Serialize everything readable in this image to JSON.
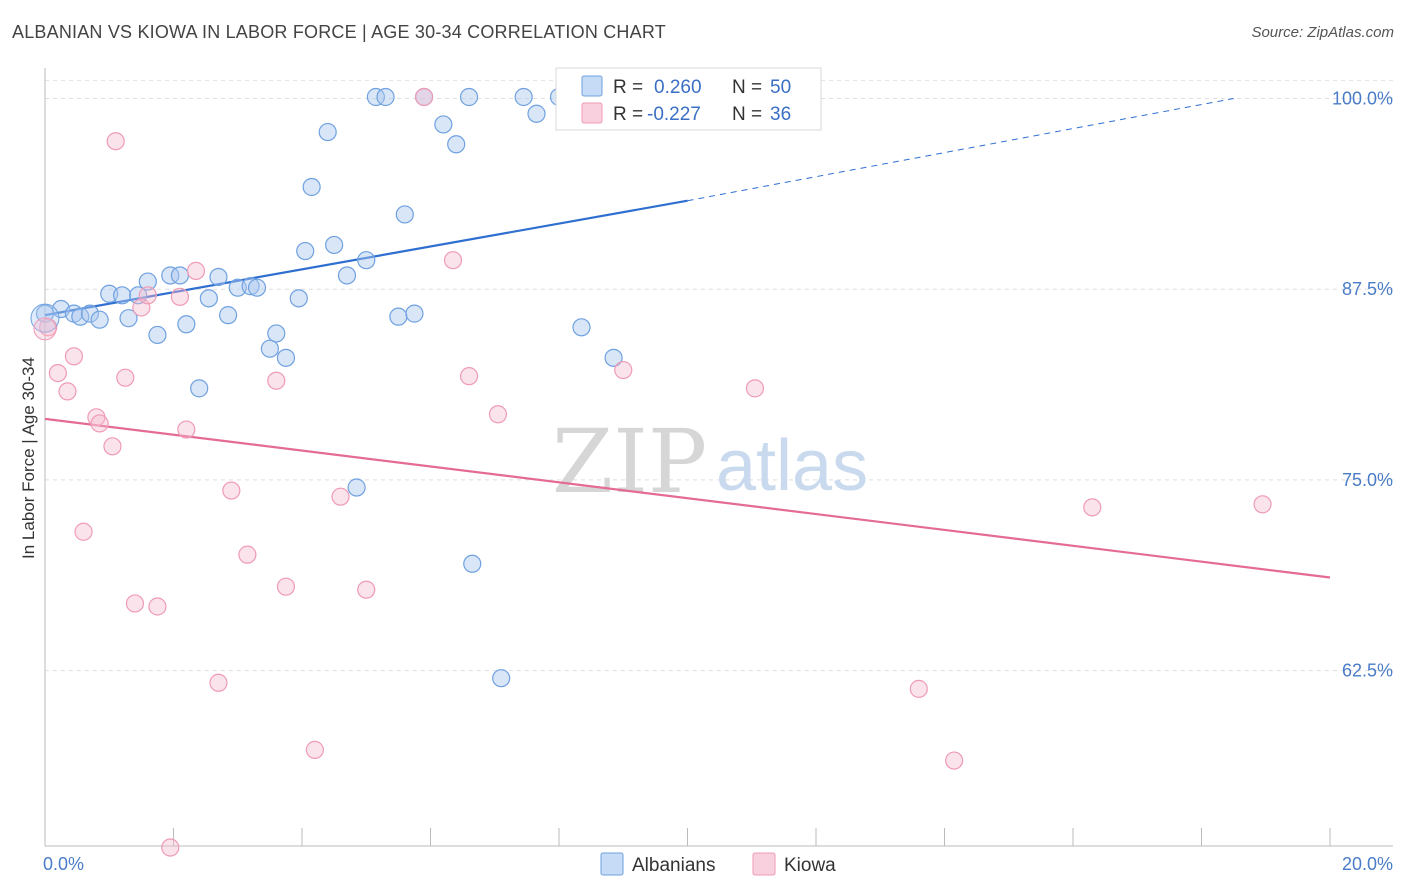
{
  "title": "ALBANIAN VS KIOWA IN LABOR FORCE | AGE 30-34 CORRELATION CHART",
  "source": "Source: ZipAtlas.com",
  "watermark": {
    "zip": "ZIP",
    "atlas": "atlas"
  },
  "colors": {
    "blue": "#6fa1e0",
    "blue_line": "#2f6fd0",
    "pink": "#ef9bb5",
    "pink_line": "#e46b95"
  },
  "chart_data": {
    "type": "scatter",
    "title": "ALBANIAN VS KIOWA IN LABOR FORCE | AGE 30-34 CORRELATION CHART",
    "xlabel": "",
    "ylabel": "In Labor Force | Age 30-34",
    "xlim": [
      0.0,
      20.0
    ],
    "ylim": [
      51.0,
      102.0
    ],
    "x_tick_labels": [
      {
        "value": 0.0,
        "label": "0.0%"
      },
      {
        "value": 20.0,
        "label": "20.0%"
      }
    ],
    "y_ticks": [
      {
        "value": 100.0,
        "label": "100.0%"
      },
      {
        "value": 87.5,
        "label": "87.5%"
      },
      {
        "value": 75.0,
        "label": "75.0%"
      },
      {
        "value": 62.5,
        "label": "62.5%"
      }
    ],
    "legend": {
      "rows": [
        {
          "r_label": "R =",
          "r_value": "0.260",
          "n_label": "N =",
          "n_value": "50"
        },
        {
          "r_label": "R =",
          "r_value": "-0.227",
          "n_label": "N =",
          "n_value": "36"
        }
      ]
    },
    "series": [
      {
        "name": "Albanians",
        "color": "#6fa1e0",
        "trend": {
          "x0": 0.0,
          "y0": 85.8,
          "x1": 10.0,
          "y1": 93.3,
          "dash_x1": 18.5,
          "dash_y1": 100.0
        },
        "points": [
          [
            0.0,
            85.9
          ],
          [
            0.25,
            86.2
          ],
          [
            0.45,
            85.9
          ],
          [
            0.55,
            85.7
          ],
          [
            0.7,
            85.9
          ],
          [
            0.85,
            85.5
          ],
          [
            1.0,
            87.2
          ],
          [
            1.2,
            87.1
          ],
          [
            1.3,
            85.6
          ],
          [
            1.45,
            87.1
          ],
          [
            1.6,
            88.0
          ],
          [
            1.75,
            84.5
          ],
          [
            1.95,
            88.4
          ],
          [
            2.1,
            88.4
          ],
          [
            2.2,
            85.2
          ],
          [
            2.4,
            81.0
          ],
          [
            2.55,
            86.9
          ],
          [
            2.7,
            88.3
          ],
          [
            2.85,
            85.8
          ],
          [
            3.0,
            87.6
          ],
          [
            3.2,
            87.7
          ],
          [
            3.3,
            87.6
          ],
          [
            3.5,
            83.6
          ],
          [
            3.6,
            84.6
          ],
          [
            3.75,
            83.0
          ],
          [
            3.95,
            86.9
          ],
          [
            4.05,
            90.0
          ],
          [
            4.15,
            94.2
          ],
          [
            4.4,
            97.8
          ],
          [
            4.5,
            90.4
          ],
          [
            4.7,
            88.4
          ],
          [
            4.85,
            74.5
          ],
          [
            5.0,
            89.4
          ],
          [
            5.15,
            100.1
          ],
          [
            5.3,
            100.1
          ],
          [
            5.5,
            85.7
          ],
          [
            5.6,
            92.4
          ],
          [
            5.75,
            85.9
          ],
          [
            5.9,
            100.1
          ],
          [
            6.2,
            98.3
          ],
          [
            6.4,
            97.0
          ],
          [
            6.6,
            100.1
          ],
          [
            6.65,
            69.5
          ],
          [
            7.1,
            62.0
          ],
          [
            7.45,
            100.1
          ],
          [
            7.65,
            99.0
          ],
          [
            8.0,
            100.1
          ],
          [
            8.35,
            85.0
          ],
          [
            8.85,
            83.0
          ],
          [
            9.35,
            100.1
          ]
        ]
      },
      {
        "name": "Kiowa",
        "color": "#ef9bb5",
        "trend": {
          "x0": 0.0,
          "y0": 79.0,
          "x1": 20.0,
          "y1": 68.6
        },
        "points": [
          [
            0.05,
            85.0
          ],
          [
            0.2,
            82.0
          ],
          [
            0.35,
            80.8
          ],
          [
            0.45,
            83.1
          ],
          [
            0.6,
            71.6
          ],
          [
            0.8,
            79.1
          ],
          [
            0.85,
            78.7
          ],
          [
            1.05,
            77.2
          ],
          [
            1.1,
            97.2
          ],
          [
            1.25,
            81.7
          ],
          [
            1.4,
            66.9
          ],
          [
            1.5,
            86.3
          ],
          [
            1.6,
            87.1
          ],
          [
            1.75,
            66.7
          ],
          [
            1.95,
            50.9
          ],
          [
            2.1,
            87.0
          ],
          [
            2.2,
            78.3
          ],
          [
            2.35,
            88.7
          ],
          [
            2.7,
            61.7
          ],
          [
            2.9,
            74.3
          ],
          [
            3.15,
            70.1
          ],
          [
            3.6,
            81.5
          ],
          [
            3.75,
            68.0
          ],
          [
            4.2,
            57.3
          ],
          [
            4.6,
            73.9
          ],
          [
            5.0,
            67.8
          ],
          [
            5.9,
            100.1
          ],
          [
            6.35,
            89.4
          ],
          [
            6.6,
            81.8
          ],
          [
            7.05,
            79.3
          ],
          [
            9.0,
            82.2
          ],
          [
            11.05,
            81.0
          ],
          [
            13.6,
            61.3
          ],
          [
            14.15,
            56.6
          ],
          [
            16.3,
            73.2
          ],
          [
            18.95,
            73.4
          ]
        ]
      }
    ]
  }
}
